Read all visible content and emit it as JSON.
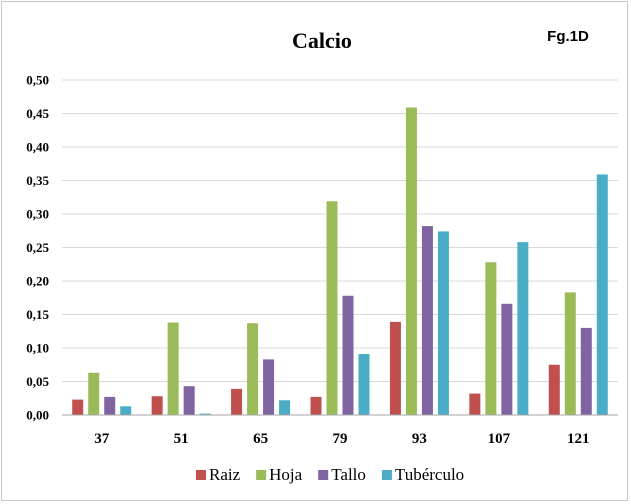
{
  "chart_data": {
    "type": "bar",
    "title": "Calcio",
    "annotation": "Fg.1D",
    "categories": [
      "37",
      "51",
      "65",
      "79",
      "93",
      "107",
      "121"
    ],
    "ylim": [
      0,
      0.5
    ],
    "yticks": [
      "0,00",
      "0,05",
      "0,10",
      "0,15",
      "0,20",
      "0,25",
      "0,30",
      "0,35",
      "0,40",
      "0,45",
      "0,50"
    ],
    "grid": true,
    "legend_position": "bottom",
    "series": [
      {
        "name": "Raiz",
        "color": "#c0504d",
        "values": [
          0.023,
          0.028,
          0.039,
          0.027,
          0.139,
          0.032,
          0.075
        ]
      },
      {
        "name": "Hoja",
        "color": "#9bbb59",
        "values": [
          0.063,
          0.138,
          0.137,
          0.319,
          0.459,
          0.228,
          0.183
        ]
      },
      {
        "name": "Tallo",
        "color": "#8064a2",
        "values": [
          0.027,
          0.043,
          0.083,
          0.178,
          0.282,
          0.166,
          0.13
        ]
      },
      {
        "name": "Tubérculo",
        "color": "#4bacc6",
        "values": [
          0.013,
          0.002,
          0.022,
          0.091,
          0.274,
          0.258,
          0.359
        ]
      }
    ]
  }
}
